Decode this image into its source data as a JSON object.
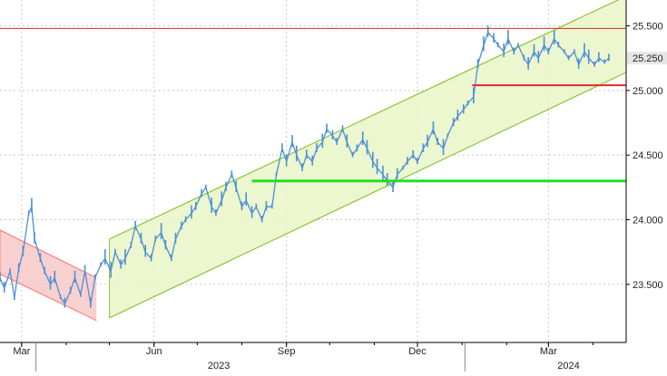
{
  "chart_data": {
    "type": "candlestick",
    "title": "",
    "xlabel": "",
    "ylabel": "",
    "x_range": [
      "2023-02-14",
      "2024-04-24"
    ],
    "ylim": [
      23.05,
      25.7
    ],
    "y_ticks": [
      {
        "value": 23.5,
        "label": "23.500"
      },
      {
        "value": 24.0,
        "label": "24.000"
      },
      {
        "value": 24.5,
        "label": "24.500"
      },
      {
        "value": 25.0,
        "label": "25.000"
      },
      {
        "value": 25.5,
        "label": "25.500"
      }
    ],
    "x_ticks": [
      {
        "date": "2023-03-01",
        "label": "Mar"
      },
      {
        "date": "2023-06-01",
        "label": "Jun"
      },
      {
        "date": "2023-09-01",
        "label": "Sep"
      },
      {
        "date": "2023-12-01",
        "label": "Dec"
      },
      {
        "date": "2024-03-01",
        "label": "Mar"
      }
    ],
    "year_labels": [
      {
        "date": "2023-07-16",
        "label": "2023"
      },
      {
        "date": "2024-03-15",
        "label": "2024"
      }
    ],
    "year_separators": [
      "2023-03-11",
      "2024-01-03"
    ],
    "last_value": {
      "value": 25.25,
      "label": "25.250"
    },
    "grid": true,
    "series": [
      {
        "values": [
          [
            "2023-02-14",
            23.55
          ],
          [
            "2023-02-17",
            23.47
          ],
          [
            "2023-02-21",
            23.6
          ],
          [
            "2023-02-24",
            23.4
          ],
          [
            "2023-02-27",
            23.62
          ],
          [
            "2023-03-02",
            23.75
          ],
          [
            "2023-03-06",
            24.05
          ],
          [
            "2023-03-08",
            24.1
          ],
          [
            "2023-03-10",
            23.85
          ],
          [
            "2023-03-14",
            23.7
          ],
          [
            "2023-03-17",
            23.6
          ],
          [
            "2023-03-21",
            23.5
          ],
          [
            "2023-03-24",
            23.55
          ],
          [
            "2023-03-28",
            23.4
          ],
          [
            "2023-03-31",
            23.35
          ],
          [
            "2023-04-04",
            23.45
          ],
          [
            "2023-04-07",
            23.55
          ],
          [
            "2023-04-11",
            23.42
          ],
          [
            "2023-04-14",
            23.6
          ],
          [
            "2023-04-18",
            23.35
          ],
          [
            "2023-04-21",
            23.55
          ],
          [
            "2023-04-25",
            23.65
          ],
          [
            "2023-04-28",
            23.7
          ],
          [
            "2023-05-02",
            23.6
          ],
          [
            "2023-05-05",
            23.75
          ],
          [
            "2023-05-09",
            23.65
          ],
          [
            "2023-05-12",
            23.7
          ],
          [
            "2023-05-16",
            23.8
          ],
          [
            "2023-05-19",
            23.95
          ],
          [
            "2023-05-23",
            23.85
          ],
          [
            "2023-05-26",
            23.75
          ],
          [
            "2023-05-30",
            23.7
          ],
          [
            "2023-06-02",
            23.85
          ],
          [
            "2023-06-06",
            23.9
          ],
          [
            "2023-06-09",
            23.8
          ],
          [
            "2023-06-13",
            23.7
          ],
          [
            "2023-06-16",
            23.85
          ],
          [
            "2023-06-20",
            23.95
          ],
          [
            "2023-06-23",
            24.0
          ],
          [
            "2023-06-27",
            24.05
          ],
          [
            "2023-06-30",
            24.1
          ],
          [
            "2023-07-04",
            24.2
          ],
          [
            "2023-07-07",
            24.25
          ],
          [
            "2023-07-11",
            24.1
          ],
          [
            "2023-07-14",
            24.05
          ],
          [
            "2023-07-18",
            24.15
          ],
          [
            "2023-07-21",
            24.25
          ],
          [
            "2023-07-25",
            24.35
          ],
          [
            "2023-07-28",
            24.25
          ],
          [
            "2023-08-01",
            24.1
          ],
          [
            "2023-08-04",
            24.15
          ],
          [
            "2023-08-08",
            24.05
          ],
          [
            "2023-08-11",
            24.1
          ],
          [
            "2023-08-15",
            24.0
          ],
          [
            "2023-08-18",
            24.1
          ],
          [
            "2023-08-22",
            24.1
          ],
          [
            "2023-08-25",
            24.35
          ],
          [
            "2023-08-29",
            24.55
          ],
          [
            "2023-09-01",
            24.45
          ],
          [
            "2023-09-05",
            24.6
          ],
          [
            "2023-09-08",
            24.5
          ],
          [
            "2023-09-12",
            24.4
          ],
          [
            "2023-09-15",
            24.5
          ],
          [
            "2023-09-19",
            24.45
          ],
          [
            "2023-09-22",
            24.55
          ],
          [
            "2023-09-26",
            24.6
          ],
          [
            "2023-09-29",
            24.7
          ],
          [
            "2023-10-03",
            24.65
          ],
          [
            "2023-10-06",
            24.6
          ],
          [
            "2023-10-10",
            24.7
          ],
          [
            "2023-10-13",
            24.6
          ],
          [
            "2023-10-17",
            24.5
          ],
          [
            "2023-10-20",
            24.55
          ],
          [
            "2023-10-24",
            24.62
          ],
          [
            "2023-10-27",
            24.55
          ],
          [
            "2023-10-31",
            24.45
          ],
          [
            "2023-11-03",
            24.4
          ],
          [
            "2023-11-07",
            24.35
          ],
          [
            "2023-11-10",
            24.3
          ],
          [
            "2023-11-14",
            24.25
          ],
          [
            "2023-11-17",
            24.35
          ],
          [
            "2023-11-21",
            24.4
          ],
          [
            "2023-11-24",
            24.45
          ],
          [
            "2023-11-28",
            24.5
          ],
          [
            "2023-12-01",
            24.45
          ],
          [
            "2023-12-05",
            24.55
          ],
          [
            "2023-12-08",
            24.6
          ],
          [
            "2023-12-12",
            24.7
          ],
          [
            "2023-12-15",
            24.6
          ],
          [
            "2023-12-19",
            24.55
          ],
          [
            "2023-12-22",
            24.65
          ],
          [
            "2023-12-26",
            24.75
          ],
          [
            "2023-12-29",
            24.8
          ],
          [
            "2024-01-02",
            24.85
          ],
          [
            "2024-01-05",
            24.9
          ],
          [
            "2024-01-09",
            24.95
          ],
          [
            "2024-01-12",
            25.2
          ],
          [
            "2024-01-16",
            25.35
          ],
          [
            "2024-01-19",
            25.45
          ],
          [
            "2024-01-23",
            25.4
          ],
          [
            "2024-01-26",
            25.35
          ],
          [
            "2024-01-30",
            25.3
          ],
          [
            "2024-02-02",
            25.4
          ],
          [
            "2024-02-06",
            25.3
          ],
          [
            "2024-02-09",
            25.35
          ],
          [
            "2024-02-13",
            25.25
          ],
          [
            "2024-02-16",
            25.2
          ],
          [
            "2024-02-20",
            25.3
          ],
          [
            "2024-02-23",
            25.25
          ],
          [
            "2024-02-27",
            25.35
          ],
          [
            "2024-03-01",
            25.3
          ],
          [
            "2024-03-05",
            25.4
          ],
          [
            "2024-03-08",
            25.35
          ],
          [
            "2024-03-12",
            25.3
          ],
          [
            "2024-03-15",
            25.25
          ],
          [
            "2024-03-19",
            25.3
          ],
          [
            "2024-03-22",
            25.2
          ],
          [
            "2024-03-26",
            25.3
          ],
          [
            "2024-03-29",
            25.25
          ],
          [
            "2024-04-02",
            25.2
          ],
          [
            "2024-04-05",
            25.25
          ],
          [
            "2024-04-09",
            25.22
          ],
          [
            "2024-04-12",
            25.25
          ]
        ]
      }
    ],
    "channels": [
      {
        "color": "#ff8080",
        "fill": "#f7c8c8",
        "upper": [
          [
            "2023-02-14",
            23.92
          ],
          [
            "2023-04-22",
            23.55
          ]
        ],
        "lower": [
          [
            "2023-02-14",
            23.58
          ],
          [
            "2023-04-22",
            23.22
          ]
        ]
      },
      {
        "color": "#88c836",
        "fill": "#e9f5c7",
        "upper": [
          [
            "2023-05-01",
            23.85
          ],
          [
            "2024-04-24",
            25.73
          ]
        ],
        "lower": [
          [
            "2023-05-01",
            23.24
          ],
          [
            "2024-04-24",
            25.14
          ]
        ]
      }
    ],
    "levels": [
      {
        "value": 25.48,
        "from": "2023-02-14",
        "to": "2024-04-24",
        "color": "#dd2a2a",
        "width": 1
      },
      {
        "value": 25.04,
        "from": "2024-01-08",
        "to": "2024-04-24",
        "color": "#dd2a2a",
        "width": 2
      },
      {
        "value": 24.3,
        "from": "2023-08-08",
        "to": "2024-04-24",
        "color": "#22e022",
        "width": 3
      }
    ],
    "colors": {
      "price": "#4d8fd6",
      "grid": "#c8c8c8",
      "axis_text": "#222222",
      "label_bg": "#e6e6e6"
    }
  }
}
